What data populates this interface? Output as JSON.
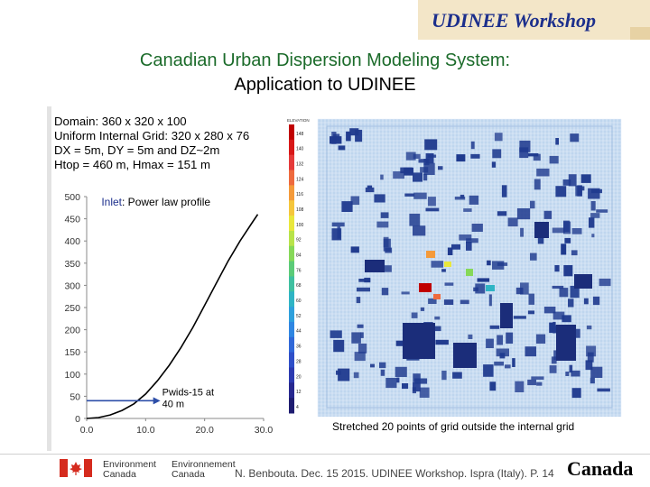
{
  "header": {
    "workshop_label": "UDINEE Workshop",
    "title_line1": "Canadian Urban Dispersion Modeling System:",
    "title_line2": "Application to UDINEE"
  },
  "specs": [
    "Domain: 360 x 320 x 100",
    "Uniform Internal Grid: 320 x 280 x 76",
    "DX = 5m, DY = 5m and DZ~2m",
    "Htop = 460 m, Hmax = 151 m"
  ],
  "chart_data": {
    "type": "line",
    "title": "",
    "annotation_title_bold": "Inlet",
    "annotation_title_rest": ": Power law profile",
    "xlabel": "",
    "ylabel": "",
    "xlim": [
      0,
      30
    ],
    "ylim": [
      0,
      500
    ],
    "x_ticks": [
      "0.0",
      "10.0",
      "20.0",
      "30.0"
    ],
    "y_ticks": [
      "0",
      "50",
      "100",
      "150",
      "200",
      "250",
      "300",
      "350",
      "400",
      "450",
      "500"
    ],
    "series": [
      {
        "x": [
          0,
          2,
          4,
          6,
          8,
          10,
          12,
          14,
          16,
          18,
          20,
          22,
          24,
          26,
          28,
          29
        ],
        "y": [
          0,
          2,
          8,
          18,
          33,
          55,
          85,
          120,
          160,
          205,
          255,
          305,
          355,
          400,
          440,
          460
        ],
        "color": "#000000"
      }
    ],
    "arrow": {
      "from_x": 0,
      "to_x": 12.5,
      "y": 40,
      "color": "#2d4ea8"
    },
    "point_label_line1": "Pwids-15 at",
    "point_label_line2": "40 m",
    "grid": false
  },
  "colorbar": {
    "header": "ELEVATION",
    "levels": [
      "148",
      "140",
      "132",
      "124",
      "116",
      "108",
      "100",
      "92",
      "84",
      "76",
      "68",
      "60",
      "52",
      "44",
      "36",
      "28",
      "20",
      "12",
      "4"
    ],
    "colors": [
      "#c00000",
      "#d81818",
      "#e53a3a",
      "#ee6a3e",
      "#f49a3a",
      "#f5c63c",
      "#e9e73c",
      "#b8e34a",
      "#86d858",
      "#5ccb78",
      "#3fc0a0",
      "#2fb4c4",
      "#2ea0dc",
      "#2f86e2",
      "#3068d8",
      "#2f4fc8",
      "#2c3ab0",
      "#27288f",
      "#1e1c70"
    ]
  },
  "stretched_caption": "Stretched 20 points of grid outside the internal grid",
  "footer": {
    "env_en_1": "Environment",
    "env_en_2": "Canada",
    "env_fr_1": "Environnement",
    "env_fr_2": "Canada",
    "citation": "N. Benbouta. Dec. 15 2015. UDINEE Workshop. Ispra (Italy). P. 14",
    "wordmark": "Canada"
  },
  "colors": {
    "title_green": "#1b6b2a",
    "banner_bg": "#f3e6c8",
    "banner_text": "#1c2f8c",
    "sim_bg": "#bfd6ee",
    "building_blue": "#1f3a8e"
  }
}
